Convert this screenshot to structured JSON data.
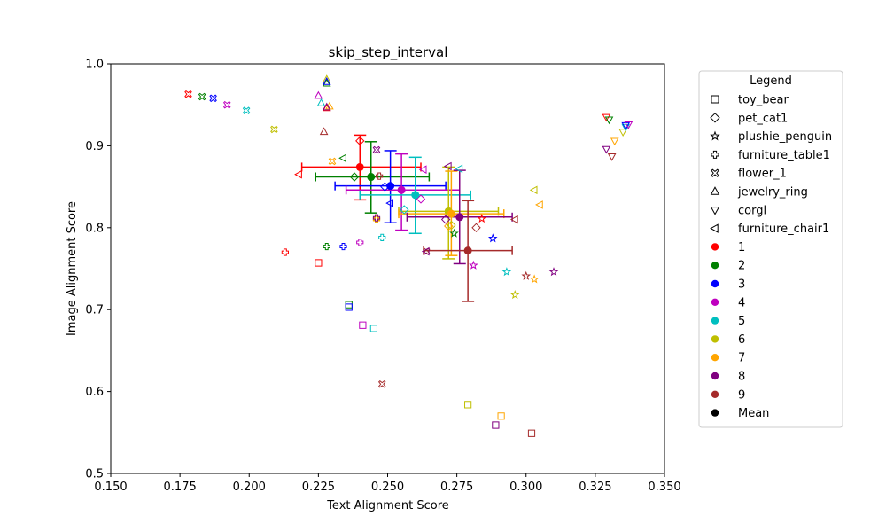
{
  "chart_data": {
    "type": "scatter",
    "title": "skip_step_interval",
    "xlabel": "Text Alignment Score",
    "ylabel": "Image Alignment Score",
    "xlim": [
      0.15,
      0.35
    ],
    "ylim": [
      0.5,
      1.0
    ],
    "xticks": [
      "0.150",
      "0.175",
      "0.200",
      "0.225",
      "0.250",
      "0.275",
      "0.300",
      "0.325",
      "0.350"
    ],
    "yticks": [
      "0.5",
      "0.6",
      "0.7",
      "0.8",
      "0.9",
      "1.0"
    ],
    "legend": {
      "title": "Legend",
      "placement": "outside-right",
      "marker_entries": [
        {
          "label": "toy_bear",
          "marker": "square"
        },
        {
          "label": "pet_cat1",
          "marker": "diamond"
        },
        {
          "label": "plushie_penguin",
          "marker": "star"
        },
        {
          "label": "furniture_table1",
          "marker": "plus"
        },
        {
          "label": "flower_1",
          "marker": "x"
        },
        {
          "label": "jewelry_ring",
          "marker": "triangle-up"
        },
        {
          "label": "corgi",
          "marker": "triangle-down"
        },
        {
          "label": "furniture_chair1",
          "marker": "triangle-left"
        }
      ],
      "color_entries": [
        {
          "label": "1",
          "color": "#ff0000"
        },
        {
          "label": "2",
          "color": "#008000"
        },
        {
          "label": "3",
          "color": "#0000ff"
        },
        {
          "label": "4",
          "color": "#bf00bf"
        },
        {
          "label": "5",
          "color": "#00bfbf"
        },
        {
          "label": "6",
          "color": "#bfbf00"
        },
        {
          "label": "7",
          "color": "#ffa500"
        },
        {
          "label": "8",
          "color": "#800080"
        },
        {
          "label": "9",
          "color": "#a52a2a"
        },
        {
          "label": "Mean",
          "color": "#000000"
        }
      ]
    },
    "points": [
      {
        "subject": "flower_1",
        "series": "1",
        "x": 0.178,
        "y": 0.963
      },
      {
        "subject": "flower_1",
        "series": "2",
        "x": 0.183,
        "y": 0.96
      },
      {
        "subject": "flower_1",
        "series": "3",
        "x": 0.187,
        "y": 0.958
      },
      {
        "subject": "flower_1",
        "series": "4",
        "x": 0.192,
        "y": 0.95
      },
      {
        "subject": "flower_1",
        "series": "5",
        "x": 0.199,
        "y": 0.943
      },
      {
        "subject": "flower_1",
        "series": "6",
        "x": 0.209,
        "y": 0.92
      },
      {
        "subject": "flower_1",
        "series": "7",
        "x": 0.23,
        "y": 0.881
      },
      {
        "subject": "flower_1",
        "series": "8",
        "x": 0.246,
        "y": 0.895
      },
      {
        "subject": "flower_1",
        "series": "9",
        "x": 0.248,
        "y": 0.609
      },
      {
        "subject": "jewelry_ring",
        "series": "4",
        "x": 0.225,
        "y": 0.961
      },
      {
        "subject": "jewelry_ring",
        "series": "5",
        "x": 0.226,
        "y": 0.952
      },
      {
        "subject": "jewelry_ring",
        "series": "2",
        "x": 0.228,
        "y": 0.976
      },
      {
        "subject": "jewelry_ring",
        "series": "3",
        "x": 0.228,
        "y": 0.978
      },
      {
        "subject": "jewelry_ring",
        "series": "6",
        "x": 0.228,
        "y": 0.981
      },
      {
        "subject": "jewelry_ring",
        "series": "1",
        "x": 0.228,
        "y": 0.946
      },
      {
        "subject": "jewelry_ring",
        "series": "7",
        "x": 0.229,
        "y": 0.948
      },
      {
        "subject": "jewelry_ring",
        "series": "8",
        "x": 0.228,
        "y": 0.947
      },
      {
        "subject": "jewelry_ring",
        "series": "9",
        "x": 0.227,
        "y": 0.917
      },
      {
        "subject": "corgi",
        "series": "1",
        "x": 0.329,
        "y": 0.935
      },
      {
        "subject": "corgi",
        "series": "2",
        "x": 0.33,
        "y": 0.932
      },
      {
        "subject": "corgi",
        "series": "8",
        "x": 0.329,
        "y": 0.896
      },
      {
        "subject": "corgi",
        "series": "9",
        "x": 0.331,
        "y": 0.887
      },
      {
        "subject": "corgi",
        "series": "7",
        "x": 0.332,
        "y": 0.906
      },
      {
        "subject": "corgi",
        "series": "6",
        "x": 0.335,
        "y": 0.917
      },
      {
        "subject": "corgi",
        "series": "5",
        "x": 0.336,
        "y": 0.923
      },
      {
        "subject": "corgi",
        "series": "3",
        "x": 0.336,
        "y": 0.925
      },
      {
        "subject": "corgi",
        "series": "4",
        "x": 0.337,
        "y": 0.926
      },
      {
        "subject": "furniture_chair1",
        "series": "1",
        "x": 0.218,
        "y": 0.865
      },
      {
        "subject": "furniture_chair1",
        "series": "2",
        "x": 0.234,
        "y": 0.885
      },
      {
        "subject": "furniture_chair1",
        "series": "3",
        "x": 0.251,
        "y": 0.83
      },
      {
        "subject": "furniture_chair1",
        "series": "4",
        "x": 0.263,
        "y": 0.871
      },
      {
        "subject": "furniture_chair1",
        "series": "5",
        "x": 0.276,
        "y": 0.872
      },
      {
        "subject": "furniture_chair1",
        "series": "8",
        "x": 0.272,
        "y": 0.875
      },
      {
        "subject": "furniture_chair1",
        "series": "9",
        "x": 0.296,
        "y": 0.81
      },
      {
        "subject": "furniture_chair1",
        "series": "6",
        "x": 0.303,
        "y": 0.846
      },
      {
        "subject": "furniture_chair1",
        "series": "7",
        "x": 0.305,
        "y": 0.828
      },
      {
        "subject": "pet_cat1",
        "series": "1",
        "x": 0.24,
        "y": 0.906
      },
      {
        "subject": "pet_cat1",
        "series": "2",
        "x": 0.238,
        "y": 0.862
      },
      {
        "subject": "pet_cat1",
        "series": "3",
        "x": 0.249,
        "y": 0.85
      },
      {
        "subject": "pet_cat1",
        "series": "4",
        "x": 0.262,
        "y": 0.835
      },
      {
        "subject": "pet_cat1",
        "series": "5",
        "x": 0.256,
        "y": 0.822
      },
      {
        "subject": "pet_cat1",
        "series": "6",
        "x": 0.273,
        "y": 0.803
      },
      {
        "subject": "pet_cat1",
        "series": "7",
        "x": 0.272,
        "y": 0.802
      },
      {
        "subject": "pet_cat1",
        "series": "8",
        "x": 0.271,
        "y": 0.81
      },
      {
        "subject": "pet_cat1",
        "series": "9",
        "x": 0.282,
        "y": 0.8
      },
      {
        "subject": "furniture_table1",
        "series": "1",
        "x": 0.213,
        "y": 0.77
      },
      {
        "subject": "furniture_table1",
        "series": "2",
        "x": 0.228,
        "y": 0.777
      },
      {
        "subject": "furniture_table1",
        "series": "3",
        "x": 0.234,
        "y": 0.777
      },
      {
        "subject": "furniture_table1",
        "series": "4",
        "x": 0.24,
        "y": 0.782
      },
      {
        "subject": "furniture_table1",
        "series": "5",
        "x": 0.248,
        "y": 0.788
      },
      {
        "subject": "furniture_table1",
        "series": "6",
        "x": 0.246,
        "y": 0.811
      },
      {
        "subject": "furniture_table1",
        "series": "7",
        "x": 0.246,
        "y": 0.81
      },
      {
        "subject": "furniture_table1",
        "series": "8",
        "x": 0.246,
        "y": 0.812
      },
      {
        "subject": "furniture_table1",
        "series": "9",
        "x": 0.247,
        "y": 0.863
      },
      {
        "subject": "plushie_penguin",
        "series": "1",
        "x": 0.284,
        "y": 0.811
      },
      {
        "subject": "plushie_penguin",
        "series": "2",
        "x": 0.274,
        "y": 0.793
      },
      {
        "subject": "plushie_penguin",
        "series": "3",
        "x": 0.288,
        "y": 0.787
      },
      {
        "subject": "plushie_penguin",
        "series": "4",
        "x": 0.281,
        "y": 0.754
      },
      {
        "subject": "plushie_penguin",
        "series": "5",
        "x": 0.293,
        "y": 0.746
      },
      {
        "subject": "plushie_penguin",
        "series": "6",
        "x": 0.296,
        "y": 0.718
      },
      {
        "subject": "plushie_penguin",
        "series": "7",
        "x": 0.303,
        "y": 0.737
      },
      {
        "subject": "plushie_penguin",
        "series": "8",
        "x": 0.31,
        "y": 0.746
      },
      {
        "subject": "plushie_penguin",
        "series": "9",
        "x": 0.3,
        "y": 0.741
      },
      {
        "subject": "toy_bear",
        "series": "1",
        "x": 0.225,
        "y": 0.757
      },
      {
        "subject": "toy_bear",
        "series": "2",
        "x": 0.236,
        "y": 0.706
      },
      {
        "subject": "toy_bear",
        "series": "3",
        "x": 0.236,
        "y": 0.703
      },
      {
        "subject": "toy_bear",
        "series": "4",
        "x": 0.241,
        "y": 0.681
      },
      {
        "subject": "toy_bear",
        "series": "5",
        "x": 0.245,
        "y": 0.677
      },
      {
        "subject": "toy_bear",
        "series": "6",
        "x": 0.279,
        "y": 0.584
      },
      {
        "subject": "toy_bear",
        "series": "7",
        "x": 0.291,
        "y": 0.57
      },
      {
        "subject": "toy_bear",
        "series": "8",
        "x": 0.289,
        "y": 0.559
      },
      {
        "subject": "toy_bear",
        "series": "9",
        "x": 0.302,
        "y": 0.549
      },
      {
        "subject": "flower_1",
        "series": "9",
        "x": 0.264,
        "y": 0.771
      },
      {
        "subject": "furniture_chair1",
        "series": "8",
        "x": 0.264,
        "y": 0.771
      }
    ],
    "means": [
      {
        "series": "1",
        "x": 0.24,
        "y": 0.874,
        "xerr": [
          0.219,
          0.262
        ],
        "yerr": [
          0.834,
          0.913
        ]
      },
      {
        "series": "2",
        "x": 0.244,
        "y": 0.862,
        "xerr": [
          0.224,
          0.265
        ],
        "yerr": [
          0.818,
          0.905
        ]
      },
      {
        "series": "3",
        "x": 0.251,
        "y": 0.851,
        "xerr": [
          0.231,
          0.271
        ],
        "yerr": [
          0.806,
          0.894
        ]
      },
      {
        "series": "4",
        "x": 0.255,
        "y": 0.846,
        "xerr": [
          0.235,
          0.276
        ],
        "yerr": [
          0.797,
          0.89
        ]
      },
      {
        "series": "5",
        "x": 0.26,
        "y": 0.84,
        "xerr": [
          0.24,
          0.28
        ],
        "yerr": [
          0.793,
          0.886
        ]
      },
      {
        "series": "6",
        "x": 0.272,
        "y": 0.82,
        "xerr": [
          0.254,
          0.29
        ],
        "yerr": [
          0.762,
          0.874
        ]
      },
      {
        "series": "7",
        "x": 0.273,
        "y": 0.817,
        "xerr": [
          0.254,
          0.292
        ],
        "yerr": [
          0.766,
          0.869
        ]
      },
      {
        "series": "8",
        "x": 0.276,
        "y": 0.813,
        "xerr": [
          0.257,
          0.295
        ],
        "yerr": [
          0.756,
          0.87
        ]
      },
      {
        "series": "9",
        "x": 0.279,
        "y": 0.772,
        "xerr": [
          0.263,
          0.295
        ],
        "yerr": [
          0.71,
          0.833
        ]
      }
    ]
  }
}
